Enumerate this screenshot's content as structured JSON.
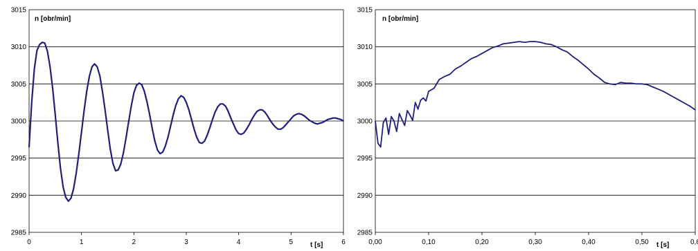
{
  "chart_data": [
    {
      "type": "line",
      "title": "",
      "ylabel": "n [obr/min]",
      "xlabel": "t [s]",
      "xlim": [
        0,
        6
      ],
      "ylim": [
        2985,
        3015
      ],
      "xticks": [
        "0",
        "1",
        "2",
        "3",
        "4",
        "5",
        "6"
      ],
      "yticks": [
        "2985",
        "2990",
        "2995",
        "3000",
        "3005",
        "3010",
        "3015"
      ],
      "grid": "horizontal",
      "line_color": "#1f1f7a",
      "series": [
        {
          "name": "",
          "x": [
            0.0,
            0.05,
            0.1,
            0.15,
            0.2,
            0.25,
            0.3,
            0.35,
            0.4,
            0.45,
            0.5,
            0.55,
            0.6,
            0.65,
            0.7,
            0.75,
            0.8,
            0.85,
            0.9,
            0.95,
            1.0,
            1.05,
            1.1,
            1.15,
            1.2,
            1.25,
            1.3,
            1.35,
            1.4,
            1.45,
            1.5,
            1.55,
            1.6,
            1.65,
            1.7,
            1.75,
            1.8,
            1.85,
            1.9,
            1.95,
            2.0,
            2.05,
            2.1,
            2.15,
            2.2,
            2.25,
            2.3,
            2.35,
            2.4,
            2.45,
            2.5,
            2.55,
            2.6,
            2.65,
            2.7,
            2.75,
            2.8,
            2.85,
            2.9,
            2.95,
            3.0,
            3.05,
            3.1,
            3.15,
            3.2,
            3.25,
            3.3,
            3.35,
            3.4,
            3.45,
            3.5,
            3.55,
            3.6,
            3.65,
            3.7,
            3.75,
            3.8,
            3.85,
            3.9,
            3.95,
            4.0,
            4.05,
            4.1,
            4.15,
            4.2,
            4.25,
            4.3,
            4.35,
            4.4,
            4.45,
            4.5,
            4.55,
            4.6,
            4.65,
            4.7,
            4.75,
            4.8,
            4.85,
            4.9,
            4.95,
            5.0,
            5.05,
            5.1,
            5.15,
            5.2,
            5.25,
            5.3,
            5.35,
            5.4,
            5.45,
            5.5,
            5.55,
            5.6,
            5.65,
            5.7,
            5.75,
            5.8,
            5.85,
            5.9,
            5.95,
            6.0
          ],
          "y": [
            2996.5,
            3002.5,
            3007.0,
            3009.5,
            3010.3,
            3010.6,
            3010.5,
            3009.4,
            3007.3,
            3004.4,
            3000.8,
            2997.0,
            2993.6,
            2991.1,
            2989.7,
            2989.2,
            2989.6,
            2990.9,
            2993.0,
            2995.6,
            2998.5,
            3001.4,
            3004.0,
            3006.0,
            3007.3,
            3007.7,
            3007.3,
            3006.1,
            3004.0,
            3001.5,
            2998.8,
            2996.2,
            2994.3,
            2993.3,
            2993.4,
            2994.2,
            2995.7,
            2997.7,
            2999.9,
            3002.0,
            3003.8,
            3004.8,
            3005.1,
            3004.9,
            3004.0,
            3002.6,
            3000.9,
            2999.0,
            2997.3,
            2996.1,
            2995.6,
            2995.8,
            2996.6,
            2997.8,
            2999.3,
            3000.8,
            3002.1,
            3003.0,
            3003.4,
            3003.2,
            3002.5,
            3001.5,
            3000.2,
            2998.9,
            2997.8,
            2997.1,
            2997.0,
            2997.3,
            2998.1,
            2999.1,
            3000.2,
            3001.2,
            3001.9,
            3002.3,
            3002.3,
            3002.0,
            3001.3,
            3000.4,
            2999.6,
            2998.8,
            2998.3,
            2998.2,
            2998.4,
            2998.9,
            2999.5,
            3000.2,
            3000.8,
            3001.3,
            3001.5,
            3001.5,
            3001.2,
            3000.7,
            3000.1,
            2999.6,
            2999.2,
            2998.9,
            2998.9,
            2999.1,
            2999.5,
            2999.9,
            3000.3,
            3000.7,
            3000.9,
            3001.0,
            3000.9,
            3000.7,
            3000.4,
            3000.1,
            2999.9,
            2999.7,
            2999.6,
            2999.7,
            2999.8,
            3000.0,
            3000.2,
            3000.3,
            3000.4,
            3000.4,
            3000.3,
            3000.2,
            3000.0
          ]
        }
      ]
    },
    {
      "type": "line",
      "title": "",
      "ylabel": "n [obr/min]",
      "xlabel": "t [s]",
      "xlim": [
        0,
        0.6
      ],
      "ylim": [
        2985,
        3015
      ],
      "xticks": [
        "0,00",
        "0,10",
        "0,20",
        "0,30",
        "0,40",
        "0,50",
        "0,6"
      ],
      "yticks": [
        "2985",
        "2990",
        "2995",
        "3000",
        "3005",
        "3010",
        "3015"
      ],
      "grid": "horizontal",
      "line_color": "#1f1f7a",
      "series": [
        {
          "name": "",
          "x": [
            0.0,
            0.005,
            0.01,
            0.015,
            0.02,
            0.025,
            0.03,
            0.035,
            0.04,
            0.045,
            0.05,
            0.055,
            0.06,
            0.065,
            0.07,
            0.075,
            0.08,
            0.085,
            0.09,
            0.095,
            0.1,
            0.11,
            0.12,
            0.13,
            0.14,
            0.15,
            0.16,
            0.17,
            0.18,
            0.19,
            0.2,
            0.21,
            0.22,
            0.23,
            0.24,
            0.25,
            0.26,
            0.27,
            0.28,
            0.29,
            0.3,
            0.31,
            0.32,
            0.33,
            0.34,
            0.35,
            0.36,
            0.37,
            0.38,
            0.39,
            0.4,
            0.41,
            0.42,
            0.43,
            0.44,
            0.45,
            0.46,
            0.47,
            0.48,
            0.49,
            0.5,
            0.51,
            0.52,
            0.53,
            0.54,
            0.55,
            0.56,
            0.57,
            0.58,
            0.59,
            0.6
          ],
          "y": [
            3000.0,
            2997.0,
            2996.5,
            2999.8,
            3000.4,
            2998.2,
            3000.6,
            3000.0,
            2998.6,
            3001.0,
            3000.2,
            2999.4,
            3001.4,
            3000.8,
            3000.1,
            3002.5,
            3001.6,
            3002.8,
            3003.1,
            3002.7,
            3004.0,
            3004.4,
            3005.6,
            3006.0,
            3006.3,
            3007.0,
            3007.4,
            3007.9,
            3008.4,
            3008.7,
            3009.1,
            3009.5,
            3009.9,
            3010.1,
            3010.4,
            3010.5,
            3010.6,
            3010.7,
            3010.6,
            3010.7,
            3010.7,
            3010.6,
            3010.4,
            3010.3,
            3010.0,
            3009.6,
            3009.3,
            3008.7,
            3008.2,
            3007.6,
            3007.0,
            3006.3,
            3005.8,
            3005.2,
            3005.0,
            3004.9,
            3005.2,
            3005.1,
            3005.1,
            3005.0,
            3005.0,
            3004.9,
            3004.6,
            3004.3,
            3004.0,
            3003.6,
            3003.2,
            3002.8,
            3002.4,
            3002.0,
            3001.5
          ]
        }
      ]
    }
  ]
}
